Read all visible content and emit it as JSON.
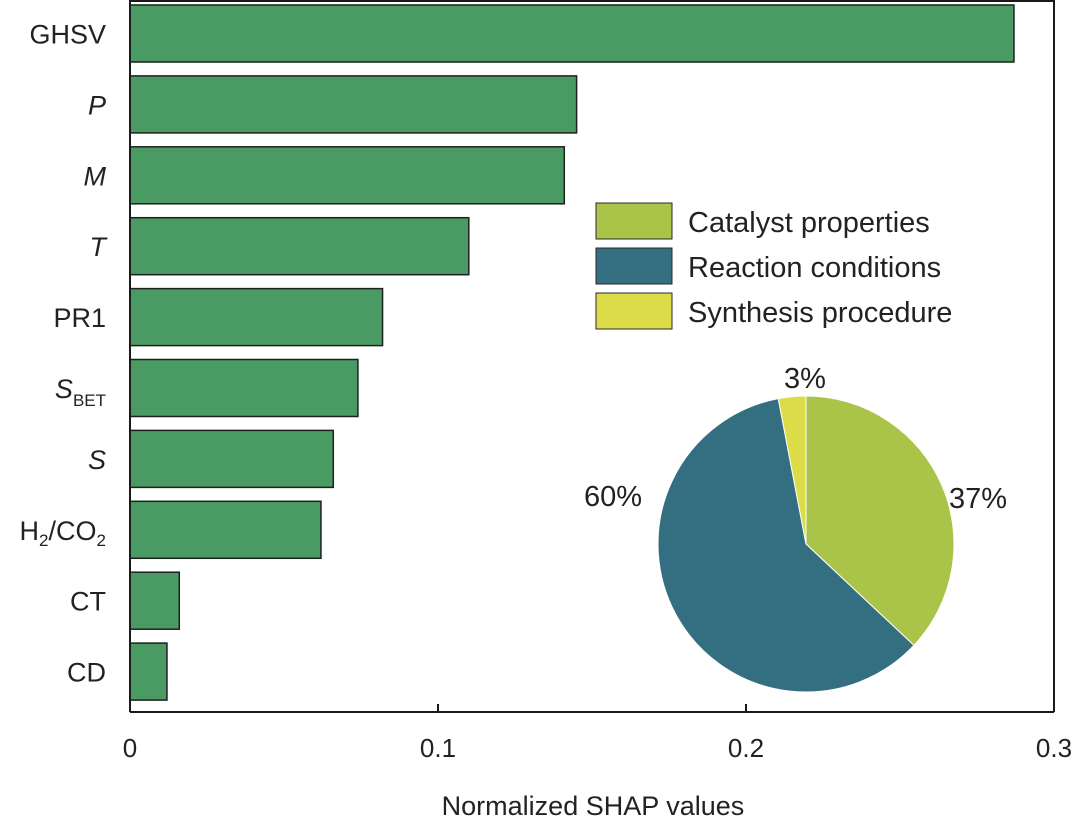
{
  "chart_data": [
    {
      "type": "bar",
      "orientation": "horizontal",
      "categories": [
        {
          "main": "GHSV",
          "sub": "",
          "italic": false
        },
        {
          "main": "P",
          "sub": "",
          "italic": true
        },
        {
          "main": "M",
          "sub": "",
          "italic": true
        },
        {
          "main": "T",
          "sub": "",
          "italic": true
        },
        {
          "main": "PR1",
          "sub": "",
          "italic": false
        },
        {
          "main": "S",
          "sub": "BET",
          "italic": true
        },
        {
          "main": "S",
          "sub": "",
          "italic": true
        },
        {
          "main": "H2/CO2",
          "sub": "",
          "italic": false
        },
        {
          "main": "CT",
          "sub": "",
          "italic": false
        },
        {
          "main": "CD",
          "sub": "",
          "italic": false
        }
      ],
      "values": [
        0.287,
        0.145,
        0.141,
        0.11,
        0.082,
        0.074,
        0.066,
        0.062,
        0.016,
        0.012
      ],
      "xlabel": "Normalized SHAP values",
      "xlim": [
        0,
        0.3
      ],
      "xticks": [
        "0",
        "0.1",
        "0.2",
        "0.3"
      ],
      "bar_color": "#4a9b63",
      "grid": false
    },
    {
      "type": "pie",
      "slices": [
        {
          "label": "Catalyst properties",
          "value": 37,
          "pct_label": "37%",
          "color": "#aac44a"
        },
        {
          "label": "Reaction conditions",
          "value": 60,
          "pct_label": "60%",
          "color": "#336f80"
        },
        {
          "label": "Synthesis procedure",
          "value": 3,
          "pct_label": "3%",
          "color": "#dcdc48"
        }
      ],
      "legend_placement": "upper-right"
    }
  ]
}
